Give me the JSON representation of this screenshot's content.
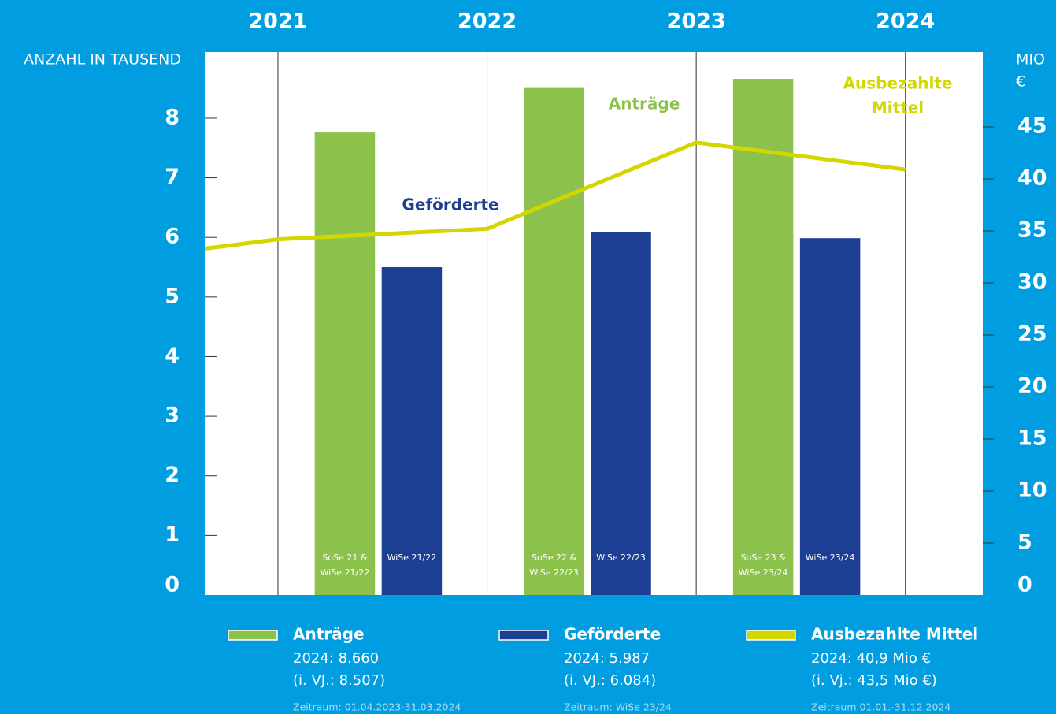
{
  "chart_data": {
    "type": "combo",
    "y_label": "ANZAHL IN TAUSEND",
    "y2_label_lines": [
      "MIO",
      "€"
    ],
    "xlim": [
      2020.65,
      2024.37
    ],
    "xticks": [
      2021,
      2022,
      2023,
      2024
    ],
    "ylim": [
      0,
      9.11
    ],
    "yticks": [
      0,
      1,
      2,
      3,
      4,
      5,
      6,
      7,
      8
    ],
    "y2lim": [
      0,
      52.2
    ],
    "y2ticks": [
      0,
      5,
      10,
      15,
      20,
      25,
      30,
      35,
      40,
      45
    ],
    "grid": true,
    "series": [
      {
        "name": "Anträge",
        "type": "bar",
        "color": "#8cc14b",
        "values": [
          7.76,
          8.507,
          8.66
        ],
        "bar_labels": [
          [
            "SoSe 21 &",
            "WiSe 21/22"
          ],
          [
            "SoSe 22 &",
            "WiSe 22/23"
          ],
          [
            "SoSe 23 &",
            "WiSe 23/24"
          ]
        ],
        "annotation": [
          "Anträge"
        ],
        "details": [
          "2024: 8.660",
          "(i. VJ.: 8.507)"
        ],
        "period": "Zeitraum: 01.04.2023-31.03.2024"
      },
      {
        "name": "Geförderte",
        "type": "bar",
        "color": "#1c3f94",
        "values": [
          5.5,
          6.084,
          5.987
        ],
        "bar_labels": [
          [
            "WiSe 21/22"
          ],
          [
            "WiSe 22/23"
          ],
          [
            "WiSe 23/24"
          ]
        ],
        "annotation": [
          "Geförderte"
        ],
        "details": [
          "2024: 5.987",
          "(i. VJ.: 6.084)"
        ],
        "period": "Zeitraum: WiSe 23/24"
      },
      {
        "name": "Ausbezahlte Mittel",
        "type": "line",
        "axis": "y2",
        "color": "#d4d600",
        "x": [
          2020.65,
          2021,
          2022,
          2023,
          2024
        ],
        "values": [
          33.3,
          34.2,
          35.2,
          43.5,
          40.9
        ],
        "annotation": [
          "Ausbezahlte",
          "Mittel"
        ],
        "details": [
          "2024: 40,9 Mio €",
          "(i. Vj.: 43,5 Mio €)"
        ],
        "period": "Zeitraum 01.01.-31.12.2024"
      }
    ]
  }
}
